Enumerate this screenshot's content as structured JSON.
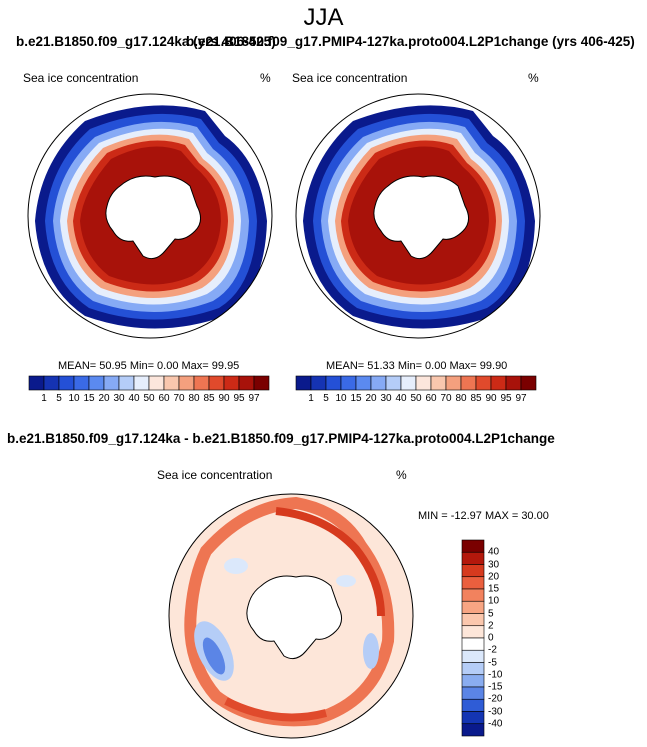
{
  "figure": {
    "season_title": "JJA",
    "case1_title": "b.e21.B1850.f09_g17.124ka (yrs 406-425)",
    "case2_title": "b.e21.B1850.f09_g17.PMIP4-127ka.proto004.L2P1change (yrs 406-425)",
    "diff_title": "b.e21.B1850.f09_g17.124ka - b.e21.B1850.f09_g17.PMIP4-127ka.proto004.L2P1change"
  },
  "panels": {
    "left": {
      "variable": "Sea ice concentration",
      "units": "%",
      "stats": "MEAN=  50.95   Min=    0.00   Max=   99.95"
    },
    "right": {
      "variable": "Sea ice concentration",
      "units": "%",
      "stats": "MEAN=  51.33   Min=    0.00   Max=   99.90"
    },
    "diff": {
      "variable": "Sea ice concentration",
      "units": "%",
      "stats": "MIN = -12.97 MAX =   30.00"
    }
  },
  "colorbars": {
    "concentration": {
      "labels": [
        "1",
        "5",
        "10",
        "15",
        "20",
        "30",
        "40",
        "50",
        "60",
        "70",
        "80",
        "85",
        "90",
        "95",
        "97"
      ],
      "colors": [
        "#0a1a8c",
        "#1533b3",
        "#2450d6",
        "#3a6ae6",
        "#5b8af0",
        "#86aaf5",
        "#b5cdf8",
        "#e6eefc",
        "#fce6dc",
        "#f9c7ae",
        "#f4a07e",
        "#ee7552",
        "#e04a2c",
        "#cc2a16",
        "#a8120a",
        "#7a0000"
      ]
    },
    "difference": {
      "labels": [
        "40",
        "30",
        "20",
        "15",
        "10",
        "5",
        "2",
        "0",
        "-2",
        "-5",
        "-10",
        "-15",
        "-20",
        "-30",
        "-40"
      ],
      "colors": [
        "#7a0000",
        "#b3180c",
        "#d63a1e",
        "#ea5f3e",
        "#f2825e",
        "#f7a583",
        "#fbc7ad",
        "#fde6d9",
        "#ffffff",
        "#dbe8fb",
        "#b5cdf7",
        "#8aadf0",
        "#5b85e6",
        "#2f5cd6",
        "#1435b3",
        "#0a1a8c"
      ]
    }
  }
}
